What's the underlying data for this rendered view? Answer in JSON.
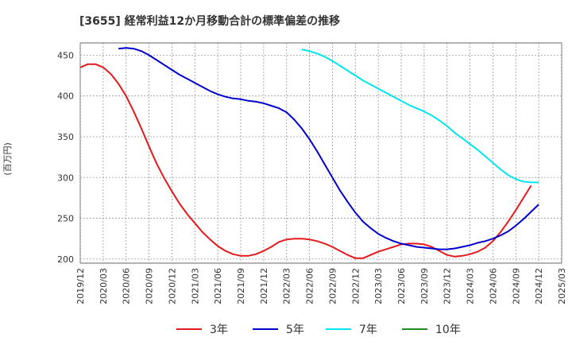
{
  "chart_data": {
    "type": "line",
    "title": "[3655]  経常利益12か月移動合計の標準偏差の推移",
    "ylabel": "(百万円)",
    "ylim": [
      195,
      465
    ],
    "yticks": [
      200,
      250,
      300,
      350,
      400,
      450
    ],
    "xlim": [
      "2019-12",
      "2025-03"
    ],
    "xticks": [
      "2019/12",
      "2020/03",
      "2020/06",
      "2020/09",
      "2020/12",
      "2021/03",
      "2021/06",
      "2021/09",
      "2021/12",
      "2022/03",
      "2022/06",
      "2022/09",
      "2022/12",
      "2023/03",
      "2023/06",
      "2023/09",
      "2023/12",
      "2024/03",
      "2024/06",
      "2024/09",
      "2024/12",
      "2025/03"
    ],
    "grid": true,
    "legend_position": "bottom",
    "series": [
      {
        "name": "3年",
        "color": "#e41a1c",
        "points": [
          [
            "2019-12",
            435
          ],
          [
            "2020-01",
            439
          ],
          [
            "2020-02",
            439
          ],
          [
            "2020-03",
            435
          ],
          [
            "2020-04",
            427
          ],
          [
            "2020-05",
            415
          ],
          [
            "2020-06",
            400
          ],
          [
            "2020-07",
            381
          ],
          [
            "2020-08",
            360
          ],
          [
            "2020-09",
            338
          ],
          [
            "2020-10",
            317
          ],
          [
            "2020-11",
            299
          ],
          [
            "2020-12",
            283
          ],
          [
            "2021-01",
            268
          ],
          [
            "2021-02",
            255
          ],
          [
            "2021-03",
            244
          ],
          [
            "2021-04",
            233
          ],
          [
            "2021-05",
            224
          ],
          [
            "2021-06",
            216
          ],
          [
            "2021-07",
            210
          ],
          [
            "2021-08",
            206
          ],
          [
            "2021-09",
            204
          ],
          [
            "2021-10",
            204
          ],
          [
            "2021-11",
            206
          ],
          [
            "2021-12",
            210
          ],
          [
            "2022-01",
            215
          ],
          [
            "2022-02",
            221
          ],
          [
            "2022-03",
            224
          ],
          [
            "2022-04",
            225
          ],
          [
            "2022-05",
            225
          ],
          [
            "2022-06",
            224
          ],
          [
            "2022-07",
            222
          ],
          [
            "2022-08",
            219
          ],
          [
            "2022-09",
            215
          ],
          [
            "2022-10",
            210
          ],
          [
            "2022-11",
            205
          ],
          [
            "2022-12",
            201
          ],
          [
            "2023-01",
            201
          ],
          [
            "2023-02",
            205
          ],
          [
            "2023-03",
            209
          ],
          [
            "2023-04",
            212
          ],
          [
            "2023-05",
            215
          ],
          [
            "2023-06",
            218
          ],
          [
            "2023-07",
            219
          ],
          [
            "2023-08",
            219
          ],
          [
            "2023-09",
            218
          ],
          [
            "2023-10",
            215
          ],
          [
            "2023-11",
            210
          ],
          [
            "2023-12",
            205
          ],
          [
            "2024-01",
            203
          ],
          [
            "2024-02",
            204
          ],
          [
            "2024-03",
            206
          ],
          [
            "2024-04",
            209
          ],
          [
            "2024-05",
            214
          ],
          [
            "2024-06",
            222
          ],
          [
            "2024-07",
            233
          ],
          [
            "2024-08",
            246
          ],
          [
            "2024-09",
            260
          ],
          [
            "2024-10",
            275
          ],
          [
            "2024-11",
            290
          ]
        ]
      },
      {
        "name": "5年",
        "color": "#0000cd",
        "points": [
          [
            "2020-05",
            458
          ],
          [
            "2020-06",
            459
          ],
          [
            "2020-07",
            458
          ],
          [
            "2020-08",
            455
          ],
          [
            "2020-09",
            450
          ],
          [
            "2020-10",
            444
          ],
          [
            "2020-11",
            438
          ],
          [
            "2020-12",
            432
          ],
          [
            "2021-01",
            426
          ],
          [
            "2021-02",
            421
          ],
          [
            "2021-03",
            416
          ],
          [
            "2021-04",
            411
          ],
          [
            "2021-05",
            406
          ],
          [
            "2021-06",
            402
          ],
          [
            "2021-07",
            399
          ],
          [
            "2021-08",
            397
          ],
          [
            "2021-09",
            396
          ],
          [
            "2021-10",
            394
          ],
          [
            "2021-11",
            393
          ],
          [
            "2021-12",
            391
          ],
          [
            "2022-01",
            388
          ],
          [
            "2022-02",
            385
          ],
          [
            "2022-03",
            380
          ],
          [
            "2022-04",
            371
          ],
          [
            "2022-05",
            360
          ],
          [
            "2022-06",
            347
          ],
          [
            "2022-07",
            332
          ],
          [
            "2022-08",
            316
          ],
          [
            "2022-09",
            300
          ],
          [
            "2022-10",
            284
          ],
          [
            "2022-11",
            270
          ],
          [
            "2022-12",
            257
          ],
          [
            "2023-01",
            246
          ],
          [
            "2023-02",
            238
          ],
          [
            "2023-03",
            231
          ],
          [
            "2023-04",
            226
          ],
          [
            "2023-05",
            222
          ],
          [
            "2023-06",
            219
          ],
          [
            "2023-07",
            217
          ],
          [
            "2023-08",
            215
          ],
          [
            "2023-09",
            214
          ],
          [
            "2023-10",
            213
          ],
          [
            "2023-11",
            212
          ],
          [
            "2023-12",
            212
          ],
          [
            "2024-01",
            213
          ],
          [
            "2024-02",
            215
          ],
          [
            "2024-03",
            217
          ],
          [
            "2024-04",
            220
          ],
          [
            "2024-05",
            222
          ],
          [
            "2024-06",
            225
          ],
          [
            "2024-07",
            229
          ],
          [
            "2024-08",
            234
          ],
          [
            "2024-09",
            241
          ],
          [
            "2024-10",
            249
          ],
          [
            "2024-11",
            258
          ],
          [
            "2024-12",
            267
          ]
        ]
      },
      {
        "name": "7年",
        "color": "#00e5ee",
        "points": [
          [
            "2022-05",
            457
          ],
          [
            "2022-06",
            455
          ],
          [
            "2022-07",
            452
          ],
          [
            "2022-08",
            448
          ],
          [
            "2022-09",
            443
          ],
          [
            "2022-10",
            437
          ],
          [
            "2022-11",
            431
          ],
          [
            "2022-12",
            425
          ],
          [
            "2023-01",
            419
          ],
          [
            "2023-02",
            414
          ],
          [
            "2023-03",
            409
          ],
          [
            "2023-04",
            404
          ],
          [
            "2023-05",
            399
          ],
          [
            "2023-06",
            394
          ],
          [
            "2023-07",
            389
          ],
          [
            "2023-08",
            385
          ],
          [
            "2023-09",
            381
          ],
          [
            "2023-10",
            376
          ],
          [
            "2023-11",
            370
          ],
          [
            "2023-12",
            363
          ],
          [
            "2024-01",
            355
          ],
          [
            "2024-02",
            348
          ],
          [
            "2024-03",
            341
          ],
          [
            "2024-04",
            334
          ],
          [
            "2024-05",
            326
          ],
          [
            "2024-06",
            318
          ],
          [
            "2024-07",
            310
          ],
          [
            "2024-08",
            303
          ],
          [
            "2024-09",
            298
          ],
          [
            "2024-10",
            295
          ],
          [
            "2024-11",
            294
          ],
          [
            "2024-12",
            294
          ]
        ]
      },
      {
        "name": "10年",
        "color": "#228b22",
        "points": []
      }
    ]
  }
}
